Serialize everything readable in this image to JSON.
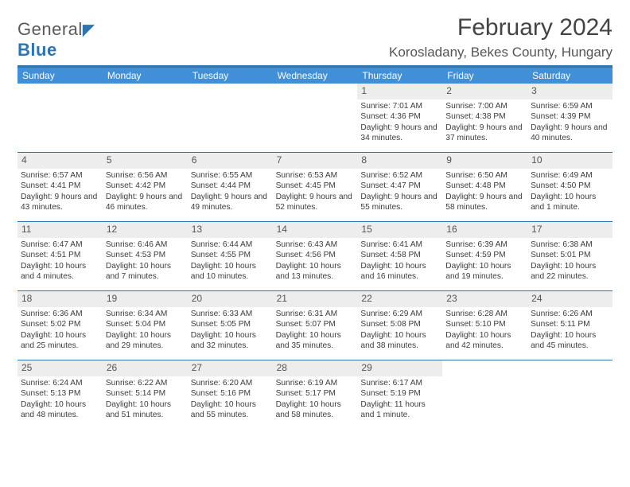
{
  "logo": {
    "primary": "General",
    "secondary": "Blue"
  },
  "title": "February 2024",
  "location": "Korosladany, Bekes County, Hungary",
  "colors": {
    "brand": "#2d74b5",
    "header_bar": "#418fd6",
    "text": "#3c3c3c",
    "daynum_bg": "#ededed"
  },
  "daynames": [
    "Sunday",
    "Monday",
    "Tuesday",
    "Wednesday",
    "Thursday",
    "Friday",
    "Saturday"
  ],
  "weeks": [
    [
      {
        "n": "",
        "sr": "",
        "ss": "",
        "dl": ""
      },
      {
        "n": "",
        "sr": "",
        "ss": "",
        "dl": ""
      },
      {
        "n": "",
        "sr": "",
        "ss": "",
        "dl": ""
      },
      {
        "n": "",
        "sr": "",
        "ss": "",
        "dl": ""
      },
      {
        "n": "1",
        "sr": "Sunrise: 7:01 AM",
        "ss": "Sunset: 4:36 PM",
        "dl": "Daylight: 9 hours and 34 minutes."
      },
      {
        "n": "2",
        "sr": "Sunrise: 7:00 AM",
        "ss": "Sunset: 4:38 PM",
        "dl": "Daylight: 9 hours and 37 minutes."
      },
      {
        "n": "3",
        "sr": "Sunrise: 6:59 AM",
        "ss": "Sunset: 4:39 PM",
        "dl": "Daylight: 9 hours and 40 minutes."
      }
    ],
    [
      {
        "n": "4",
        "sr": "Sunrise: 6:57 AM",
        "ss": "Sunset: 4:41 PM",
        "dl": "Daylight: 9 hours and 43 minutes."
      },
      {
        "n": "5",
        "sr": "Sunrise: 6:56 AM",
        "ss": "Sunset: 4:42 PM",
        "dl": "Daylight: 9 hours and 46 minutes."
      },
      {
        "n": "6",
        "sr": "Sunrise: 6:55 AM",
        "ss": "Sunset: 4:44 PM",
        "dl": "Daylight: 9 hours and 49 minutes."
      },
      {
        "n": "7",
        "sr": "Sunrise: 6:53 AM",
        "ss": "Sunset: 4:45 PM",
        "dl": "Daylight: 9 hours and 52 minutes."
      },
      {
        "n": "8",
        "sr": "Sunrise: 6:52 AM",
        "ss": "Sunset: 4:47 PM",
        "dl": "Daylight: 9 hours and 55 minutes."
      },
      {
        "n": "9",
        "sr": "Sunrise: 6:50 AM",
        "ss": "Sunset: 4:48 PM",
        "dl": "Daylight: 9 hours and 58 minutes."
      },
      {
        "n": "10",
        "sr": "Sunrise: 6:49 AM",
        "ss": "Sunset: 4:50 PM",
        "dl": "Daylight: 10 hours and 1 minute."
      }
    ],
    [
      {
        "n": "11",
        "sr": "Sunrise: 6:47 AM",
        "ss": "Sunset: 4:51 PM",
        "dl": "Daylight: 10 hours and 4 minutes."
      },
      {
        "n": "12",
        "sr": "Sunrise: 6:46 AM",
        "ss": "Sunset: 4:53 PM",
        "dl": "Daylight: 10 hours and 7 minutes."
      },
      {
        "n": "13",
        "sr": "Sunrise: 6:44 AM",
        "ss": "Sunset: 4:55 PM",
        "dl": "Daylight: 10 hours and 10 minutes."
      },
      {
        "n": "14",
        "sr": "Sunrise: 6:43 AM",
        "ss": "Sunset: 4:56 PM",
        "dl": "Daylight: 10 hours and 13 minutes."
      },
      {
        "n": "15",
        "sr": "Sunrise: 6:41 AM",
        "ss": "Sunset: 4:58 PM",
        "dl": "Daylight: 10 hours and 16 minutes."
      },
      {
        "n": "16",
        "sr": "Sunrise: 6:39 AM",
        "ss": "Sunset: 4:59 PM",
        "dl": "Daylight: 10 hours and 19 minutes."
      },
      {
        "n": "17",
        "sr": "Sunrise: 6:38 AM",
        "ss": "Sunset: 5:01 PM",
        "dl": "Daylight: 10 hours and 22 minutes."
      }
    ],
    [
      {
        "n": "18",
        "sr": "Sunrise: 6:36 AM",
        "ss": "Sunset: 5:02 PM",
        "dl": "Daylight: 10 hours and 25 minutes."
      },
      {
        "n": "19",
        "sr": "Sunrise: 6:34 AM",
        "ss": "Sunset: 5:04 PM",
        "dl": "Daylight: 10 hours and 29 minutes."
      },
      {
        "n": "20",
        "sr": "Sunrise: 6:33 AM",
        "ss": "Sunset: 5:05 PM",
        "dl": "Daylight: 10 hours and 32 minutes."
      },
      {
        "n": "21",
        "sr": "Sunrise: 6:31 AM",
        "ss": "Sunset: 5:07 PM",
        "dl": "Daylight: 10 hours and 35 minutes."
      },
      {
        "n": "22",
        "sr": "Sunrise: 6:29 AM",
        "ss": "Sunset: 5:08 PM",
        "dl": "Daylight: 10 hours and 38 minutes."
      },
      {
        "n": "23",
        "sr": "Sunrise: 6:28 AM",
        "ss": "Sunset: 5:10 PM",
        "dl": "Daylight: 10 hours and 42 minutes."
      },
      {
        "n": "24",
        "sr": "Sunrise: 6:26 AM",
        "ss": "Sunset: 5:11 PM",
        "dl": "Daylight: 10 hours and 45 minutes."
      }
    ],
    [
      {
        "n": "25",
        "sr": "Sunrise: 6:24 AM",
        "ss": "Sunset: 5:13 PM",
        "dl": "Daylight: 10 hours and 48 minutes."
      },
      {
        "n": "26",
        "sr": "Sunrise: 6:22 AM",
        "ss": "Sunset: 5:14 PM",
        "dl": "Daylight: 10 hours and 51 minutes."
      },
      {
        "n": "27",
        "sr": "Sunrise: 6:20 AM",
        "ss": "Sunset: 5:16 PM",
        "dl": "Daylight: 10 hours and 55 minutes."
      },
      {
        "n": "28",
        "sr": "Sunrise: 6:19 AM",
        "ss": "Sunset: 5:17 PM",
        "dl": "Daylight: 10 hours and 58 minutes."
      },
      {
        "n": "29",
        "sr": "Sunrise: 6:17 AM",
        "ss": "Sunset: 5:19 PM",
        "dl": "Daylight: 11 hours and 1 minute."
      },
      {
        "n": "",
        "sr": "",
        "ss": "",
        "dl": ""
      },
      {
        "n": "",
        "sr": "",
        "ss": "",
        "dl": ""
      }
    ]
  ]
}
